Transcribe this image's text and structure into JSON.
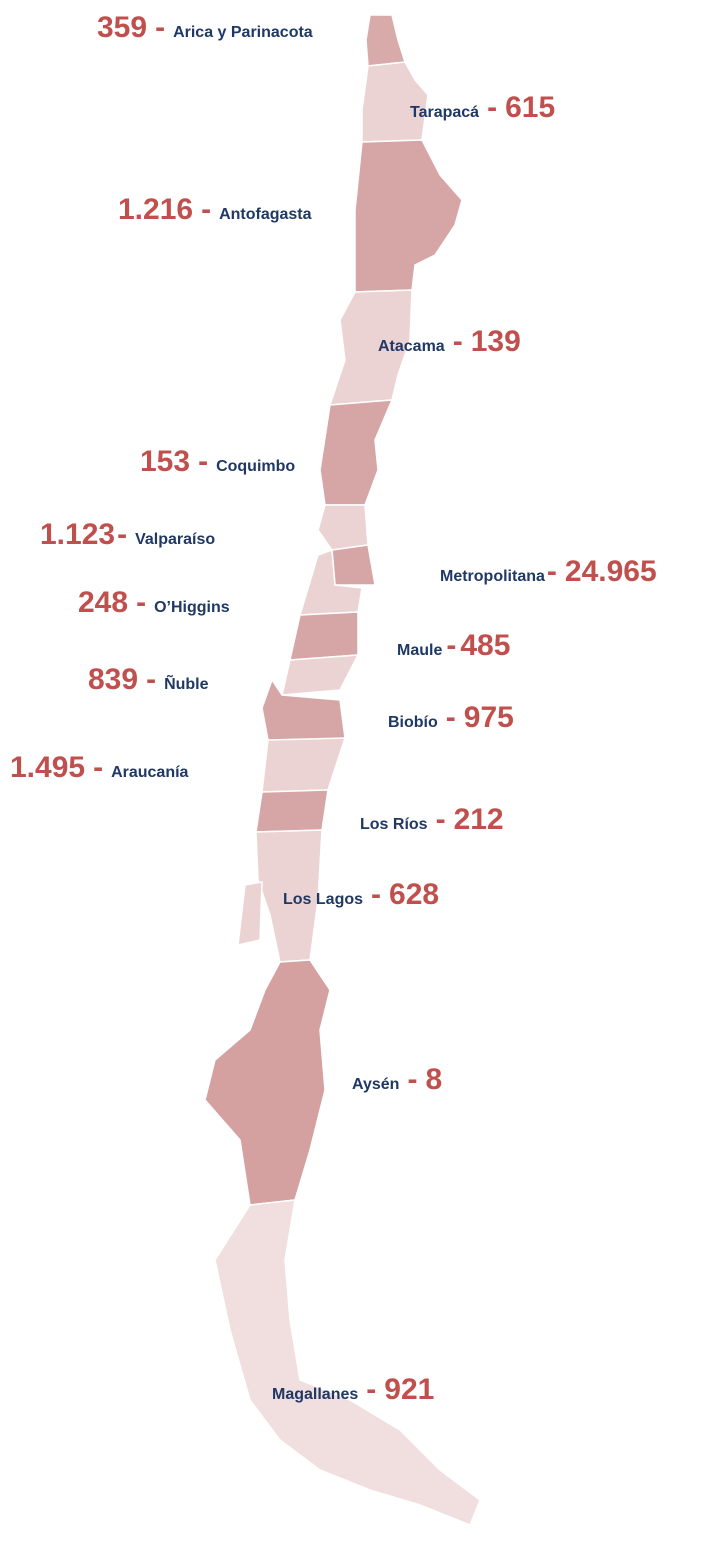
{
  "separator": "-",
  "regions": [
    {
      "name": "Arica y Parinacota",
      "value": "359"
    },
    {
      "name": "Tarapacá",
      "value": "615"
    },
    {
      "name": "Antofagasta",
      "value": "1.216"
    },
    {
      "name": "Atacama",
      "value": "139"
    },
    {
      "name": "Coquimbo",
      "value": "153"
    },
    {
      "name": "Valparaíso",
      "value": "1.123"
    },
    {
      "name": "Metropolitana",
      "value": "24.965"
    },
    {
      "name": "O’Higgins",
      "value": "248"
    },
    {
      "name": "Maule",
      "value": "485"
    },
    {
      "name": "Ñuble",
      "value": "839"
    },
    {
      "name": "Biobío",
      "value": "975"
    },
    {
      "name": "Araucanía",
      "value": "1.495"
    },
    {
      "name": "Los Ríos",
      "value": "212"
    },
    {
      "name": "Los Lagos",
      "value": "628"
    },
    {
      "name": "Aysén",
      "value": "8"
    },
    {
      "name": "Magallanes",
      "value": "921"
    }
  ]
}
